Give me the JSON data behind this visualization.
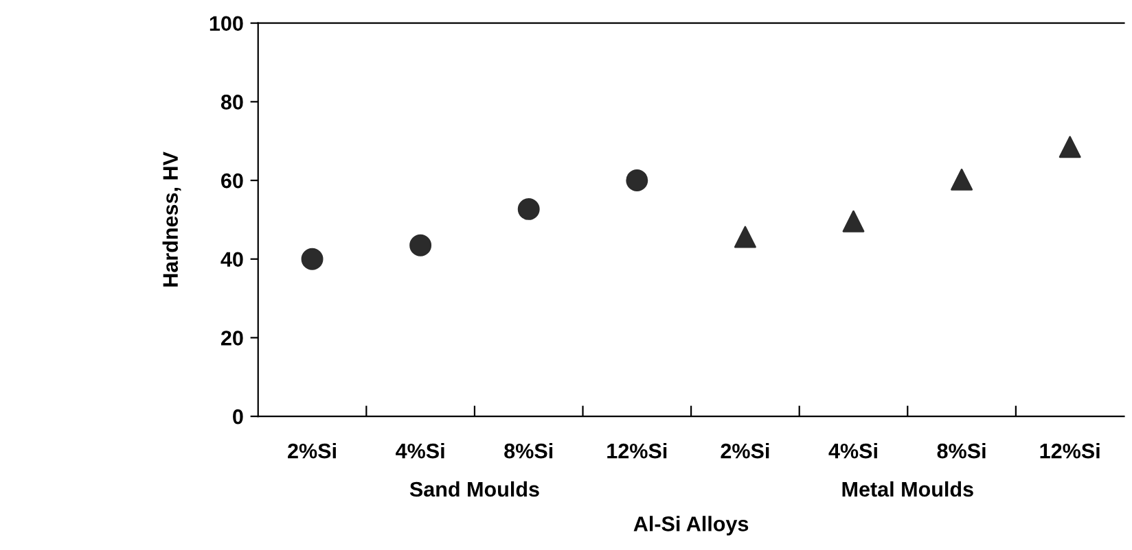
{
  "chart_data": {
    "type": "scatter",
    "xlabel": "Al-Si Alloys",
    "ylabel": "Hardness, HV",
    "categories": [
      "2%Si",
      "4%Si",
      "8%Si",
      "12%Si",
      "2%Si",
      "4%Si",
      "8%Si",
      "12%Si"
    ],
    "series": [
      {
        "color": "#2b2b2b",
        "marker": "circle",
        "values": [
          40,
          43.5,
          52.7,
          60,
          null,
          null,
          null,
          null
        ]
      },
      {
        "color": "#2b2b2b",
        "marker": "triangle",
        "values": [
          null,
          null,
          null,
          null,
          45.6,
          49.6,
          60.2,
          68.5
        ]
      }
    ],
    "annotations": [
      "Sand Moulds",
      "Metal Moulds"
    ],
    "ylim": [
      0,
      100
    ],
    "yticks": [
      0,
      20,
      40,
      60,
      80,
      100
    ],
    "grid": false,
    "legend": false
  }
}
